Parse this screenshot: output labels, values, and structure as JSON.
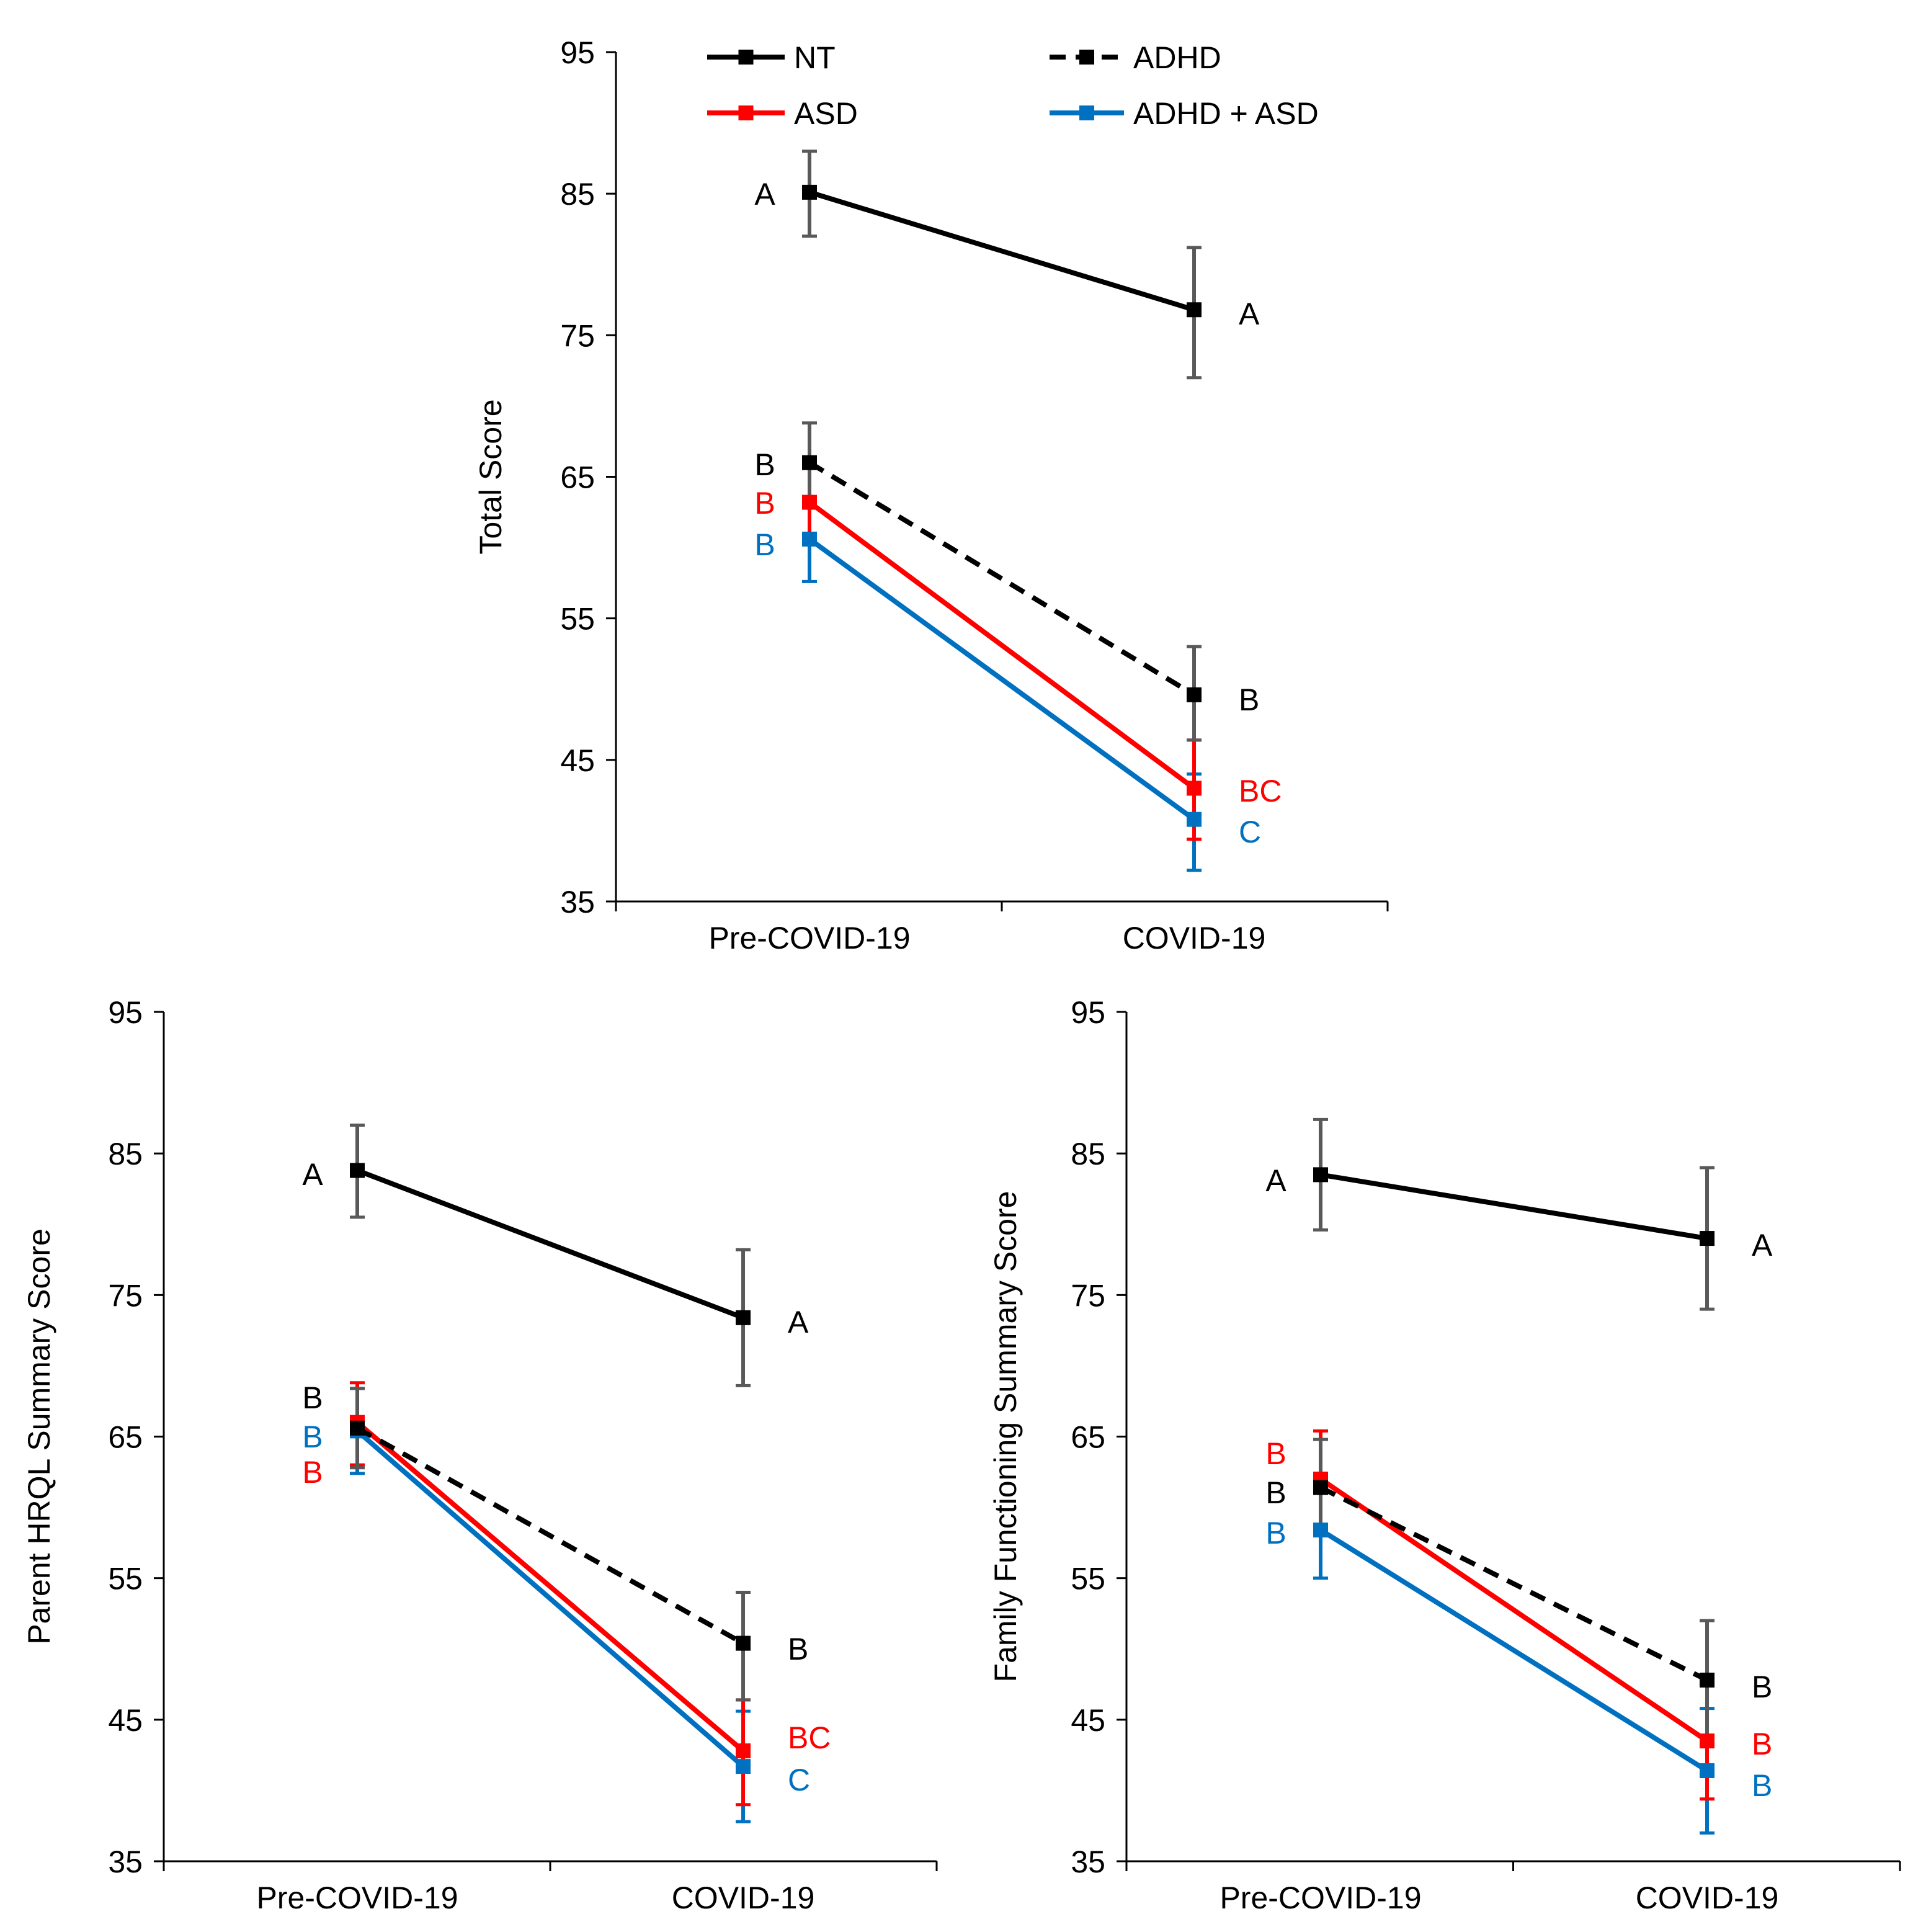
{
  "legend": [
    {
      "key": "NT",
      "label": "NT",
      "color": "#000000",
      "dashed": false
    },
    {
      "key": "ADHD",
      "label": "ADHD",
      "color": "#000000",
      "dashed": true
    },
    {
      "key": "ASD",
      "label": "ASD",
      "color": "#ff0000",
      "dashed": false
    },
    {
      "key": "ADHD_ASD",
      "label": "ADHD + ASD",
      "color": "#0070c0",
      "dashed": false
    }
  ],
  "colors": {
    "NT": "#000000",
    "ADHD": "#000000",
    "ASD": "#ff0000",
    "ADHD_ASD": "#0070c0",
    "nt_errorbar": "#595959"
  },
  "chart_data": [
    {
      "type": "line",
      "title": "",
      "xlabel": "",
      "ylabel": "Total Score",
      "ylim": [
        35,
        95
      ],
      "yticks": [
        "35",
        "45",
        "55",
        "65",
        "75",
        "85",
        "95"
      ],
      "categories": [
        "Pre-COVID-19",
        "COVID-19"
      ],
      "series": [
        {
          "key": "NT",
          "name": "NT",
          "values": [
            85.1,
            76.8
          ],
          "err_low": [
            82.0,
            72.0
          ],
          "err_high": [
            88.0,
            81.2
          ],
          "sig": [
            "A",
            "A"
          ]
        },
        {
          "key": "ADHD",
          "name": "ADHD",
          "values": [
            66.0,
            49.6
          ],
          "err_low": [
            63.2,
            46.4
          ],
          "err_high": [
            68.8,
            53.0
          ],
          "sig": [
            "B",
            "B"
          ]
        },
        {
          "key": "ASD",
          "name": "ASD",
          "values": [
            63.2,
            43.0
          ],
          "err_low": [
            60.3,
            39.4
          ],
          "err_high": [
            66.0,
            46.4
          ],
          "sig": [
            "B",
            "BC"
          ]
        },
        {
          "key": "ADHD_ASD",
          "name": "ADHD + ASD",
          "values": [
            60.6,
            40.8
          ],
          "err_low": [
            57.6,
            37.2
          ],
          "err_high": [
            63.6,
            44.0
          ],
          "sig": [
            "B",
            "C"
          ]
        }
      ]
    },
    {
      "type": "line",
      "title": "",
      "xlabel": "",
      "ylabel": "Parent HRQL Summary Score",
      "ylim": [
        35,
        95
      ],
      "yticks": [
        "35",
        "45",
        "55",
        "65",
        "75",
        "85",
        "95"
      ],
      "categories": [
        "Pre-COVID-19",
        "COVID-19"
      ],
      "series": [
        {
          "key": "NT",
          "name": "NT",
          "values": [
            83.8,
            73.4
          ],
          "err_low": [
            80.5,
            68.6
          ],
          "err_high": [
            87.0,
            78.2
          ],
          "sig": [
            "A",
            "A"
          ]
        },
        {
          "key": "ADHD",
          "name": "ADHD",
          "values": [
            65.6,
            50.4
          ],
          "err_low": [
            62.8,
            46.4
          ],
          "err_high": [
            68.4,
            54.0
          ],
          "sig": [
            "B",
            "B"
          ]
        },
        {
          "key": "ASD",
          "name": "ASD",
          "values": [
            66.0,
            42.8
          ],
          "err_low": [
            63.0,
            39.0
          ],
          "err_high": [
            68.8,
            46.4
          ],
          "sig": [
            "B",
            "BC"
          ]
        },
        {
          "key": "ADHD_ASD",
          "name": "ADHD + ASD",
          "values": [
            65.4,
            41.7
          ],
          "err_low": [
            62.4,
            37.8
          ],
          "err_high": [
            68.4,
            45.6
          ],
          "sig": [
            "B",
            "C"
          ]
        }
      ]
    },
    {
      "type": "line",
      "title": "",
      "xlabel": "",
      "ylabel": "Family Functioning Summary Score",
      "ylim": [
        35,
        95
      ],
      "yticks": [
        "35",
        "45",
        "55",
        "65",
        "75",
        "85",
        "95"
      ],
      "categories": [
        "Pre-COVID-19",
        "COVID-19"
      ],
      "series": [
        {
          "key": "NT",
          "name": "NT",
          "values": [
            83.5,
            79.0
          ],
          "err_low": [
            79.6,
            74.0
          ],
          "err_high": [
            87.4,
            84.0
          ],
          "sig": [
            "A",
            "A"
          ]
        },
        {
          "key": "ADHD",
          "name": "ADHD",
          "values": [
            61.4,
            47.8
          ],
          "err_low": [
            58.0,
            43.8
          ],
          "err_high": [
            64.8,
            52.0
          ],
          "sig": [
            "B",
            "B"
          ]
        },
        {
          "key": "ASD",
          "name": "ASD",
          "values": [
            62.0,
            43.5
          ],
          "err_low": [
            58.6,
            39.4
          ],
          "err_high": [
            65.4,
            47.6
          ],
          "sig": [
            "B",
            "B"
          ]
        },
        {
          "key": "ADHD_ASD",
          "name": "ADHD + ASD",
          "values": [
            58.4,
            41.4
          ],
          "err_low": [
            55.0,
            37.0
          ],
          "err_high": [
            61.8,
            45.8
          ],
          "sig": [
            "B",
            "B"
          ]
        }
      ]
    }
  ]
}
